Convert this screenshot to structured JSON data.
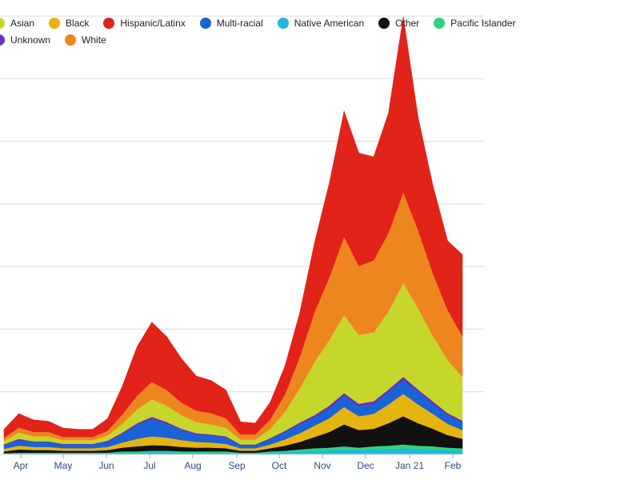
{
  "chart_data": {
    "type": "area",
    "stacked": true,
    "title": "",
    "xlabel": "",
    "ylabel": "",
    "grid": true,
    "legend_placement": "top-left",
    "x_tick_labels": [
      "Apr",
      "May",
      "Jun",
      "Jul",
      "Aug",
      "Sep",
      "Oct",
      "Nov",
      "Dec",
      "Jan 21",
      "Feb"
    ],
    "ylim": [
      0,
      700
    ],
    "gridline_values": [
      0,
      100,
      200,
      300,
      400,
      500,
      600,
      700
    ],
    "legend": [
      {
        "name": "Asian",
        "color": "#c6d62a"
      },
      {
        "name": "Black",
        "color": "#e6b410"
      },
      {
        "name": "Hispanic/Latinx",
        "color": "#e2231a"
      },
      {
        "name": "Multi-racial",
        "color": "#1a63d6"
      },
      {
        "name": "Native American",
        "color": "#22b8d6"
      },
      {
        "name": "Other",
        "color": "#111111"
      },
      {
        "name": "Pacific Islander",
        "color": "#2ed47a"
      },
      {
        "name": "Unknown",
        "color": "#6a2fc4"
      },
      {
        "name": "White",
        "color": "#ee8620"
      }
    ],
    "stack_order": [
      "Native American",
      "Pacific Islander",
      "Other",
      "Black",
      "Multi-racial",
      "Unknown",
      "Asian",
      "White",
      "Hispanic/Latinx"
    ],
    "x_dates": [
      "Mar 20",
      "Apr 1",
      "Apr 15",
      "May 1",
      "May 15",
      "Jun 1",
      "Jun 15",
      "Jul 1",
      "Jul 10",
      "Jul 20",
      "Jul 25",
      "Aug 1",
      "Aug 15",
      "Sep 1",
      "Sep 10",
      "Sep 20",
      "Oct 1",
      "Oct 15",
      "Nov 1",
      "Nov 10",
      "Nov 20",
      "Dec 1",
      "Dec 10",
      "Dec 18",
      "Dec 25",
      "Jan 1",
      "Jan 10",
      "Jan 14",
      "Jan 18",
      "Jan 25",
      "Feb 1",
      "Feb 7"
    ],
    "series": [
      {
        "name": "Native American",
        "values": [
          1,
          2,
          2,
          2,
          2,
          2,
          2,
          2,
          3,
          3,
          4,
          4,
          3,
          3,
          3,
          3,
          2,
          2,
          3,
          4,
          5,
          6,
          7,
          8,
          7,
          8,
          9,
          10,
          9,
          8,
          7,
          6
        ]
      },
      {
        "name": "Pacific Islander",
        "values": [
          1,
          1,
          1,
          1,
          1,
          1,
          1,
          1,
          2,
          2,
          2,
          2,
          2,
          2,
          2,
          2,
          1,
          1,
          2,
          2,
          3,
          4,
          4,
          5,
          4,
          5,
          5,
          6,
          5,
          5,
          4,
          4
        ]
      },
      {
        "name": "Other",
        "values": [
          3,
          5,
          4,
          4,
          3,
          3,
          3,
          4,
          6,
          8,
          9,
          8,
          7,
          6,
          6,
          5,
          3,
          3,
          5,
          8,
          12,
          18,
          25,
          35,
          28,
          28,
          36,
          45,
          36,
          28,
          20,
          15
        ]
      },
      {
        "name": "Black",
        "values": [
          4,
          6,
          5,
          5,
          4,
          4,
          4,
          5,
          8,
          12,
          14,
          13,
          11,
          9,
          8,
          7,
          4,
          4,
          6,
          10,
          14,
          18,
          22,
          28,
          22,
          24,
          30,
          36,
          30,
          24,
          18,
          14
        ]
      },
      {
        "name": "Multi-racial",
        "values": [
          6,
          9,
          8,
          8,
          6,
          6,
          6,
          8,
          14,
          22,
          28,
          22,
          16,
          12,
          11,
          10,
          5,
          5,
          8,
          12,
          14,
          14,
          16,
          18,
          16,
          16,
          20,
          22,
          20,
          16,
          14,
          12
        ]
      },
      {
        "name": "Unknown",
        "values": [
          1,
          2,
          1,
          1,
          1,
          1,
          1,
          2,
          2,
          3,
          3,
          3,
          2,
          2,
          2,
          2,
          1,
          1,
          2,
          2,
          3,
          3,
          4,
          4,
          4,
          4,
          4,
          5,
          4,
          4,
          3,
          3
        ]
      },
      {
        "name": "Asian",
        "values": [
          6,
          10,
          8,
          8,
          6,
          6,
          6,
          8,
          14,
          22,
          28,
          26,
          22,
          18,
          16,
          14,
          8,
          8,
          15,
          30,
          55,
          85,
          105,
          125,
          110,
          110,
          125,
          150,
          130,
          105,
          85,
          70
        ]
      },
      {
        "name": "White",
        "values": [
          5,
          8,
          7,
          7,
          5,
          5,
          5,
          8,
          15,
          22,
          28,
          25,
          20,
          18,
          18,
          15,
          8,
          8,
          15,
          28,
          50,
          80,
          100,
          125,
          110,
          115,
          125,
          145,
          125,
          100,
          80,
          65
        ]
      },
      {
        "name": "Hispanic/Latinx",
        "values": [
          13,
          22,
          19,
          17,
          14,
          12,
          12,
          19,
          45,
          78,
          95,
          85,
          70,
          55,
          52,
          45,
          20,
          18,
          27,
          45,
          70,
          110,
          150,
          200,
          180,
          165,
          191,
          280,
          180,
          140,
          110,
          130
        ]
      }
    ]
  }
}
